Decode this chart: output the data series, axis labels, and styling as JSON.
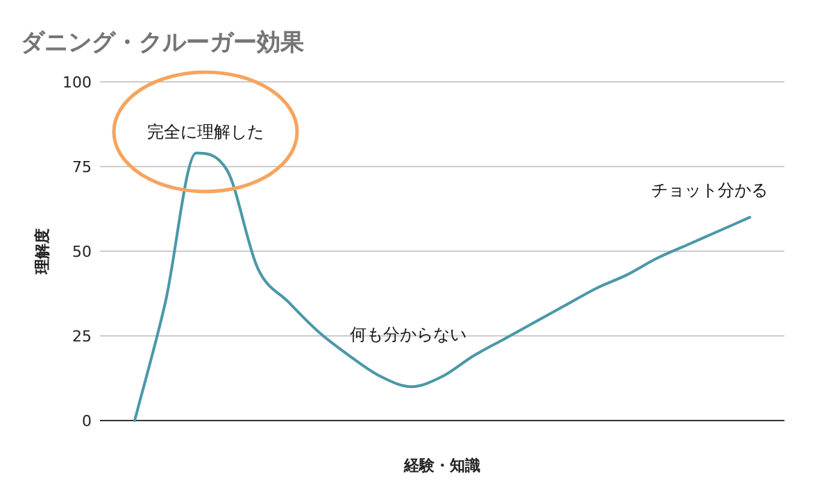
{
  "chart_data": {
    "type": "line",
    "title": "ダニング・クルーガー効果",
    "xlabel": "経験・知識",
    "ylabel": "理解度",
    "categories": [
      null,
      null,
      null,
      null,
      null,
      null,
      null,
      null,
      null,
      null,
      null,
      null,
      null,
      null,
      null,
      null,
      null,
      null,
      null,
      null,
      null
    ],
    "series": [
      {
        "color": "#4a98a8",
        "values": [
          0,
          35,
          79,
          74,
          45,
          35,
          26,
          19,
          13,
          10,
          13,
          19,
          24,
          29,
          34,
          39,
          43,
          48,
          52,
          56,
          60
        ]
      }
    ],
    "ylim": [
      0,
      100
    ],
    "yticks": [
      0,
      25,
      50,
      75,
      100
    ],
    "grid": "y",
    "marker": "none",
    "line_style": "solid",
    "annotations": [
      "完全に理解した",
      "何も分からない",
      "チョット分かる"
    ]
  }
}
